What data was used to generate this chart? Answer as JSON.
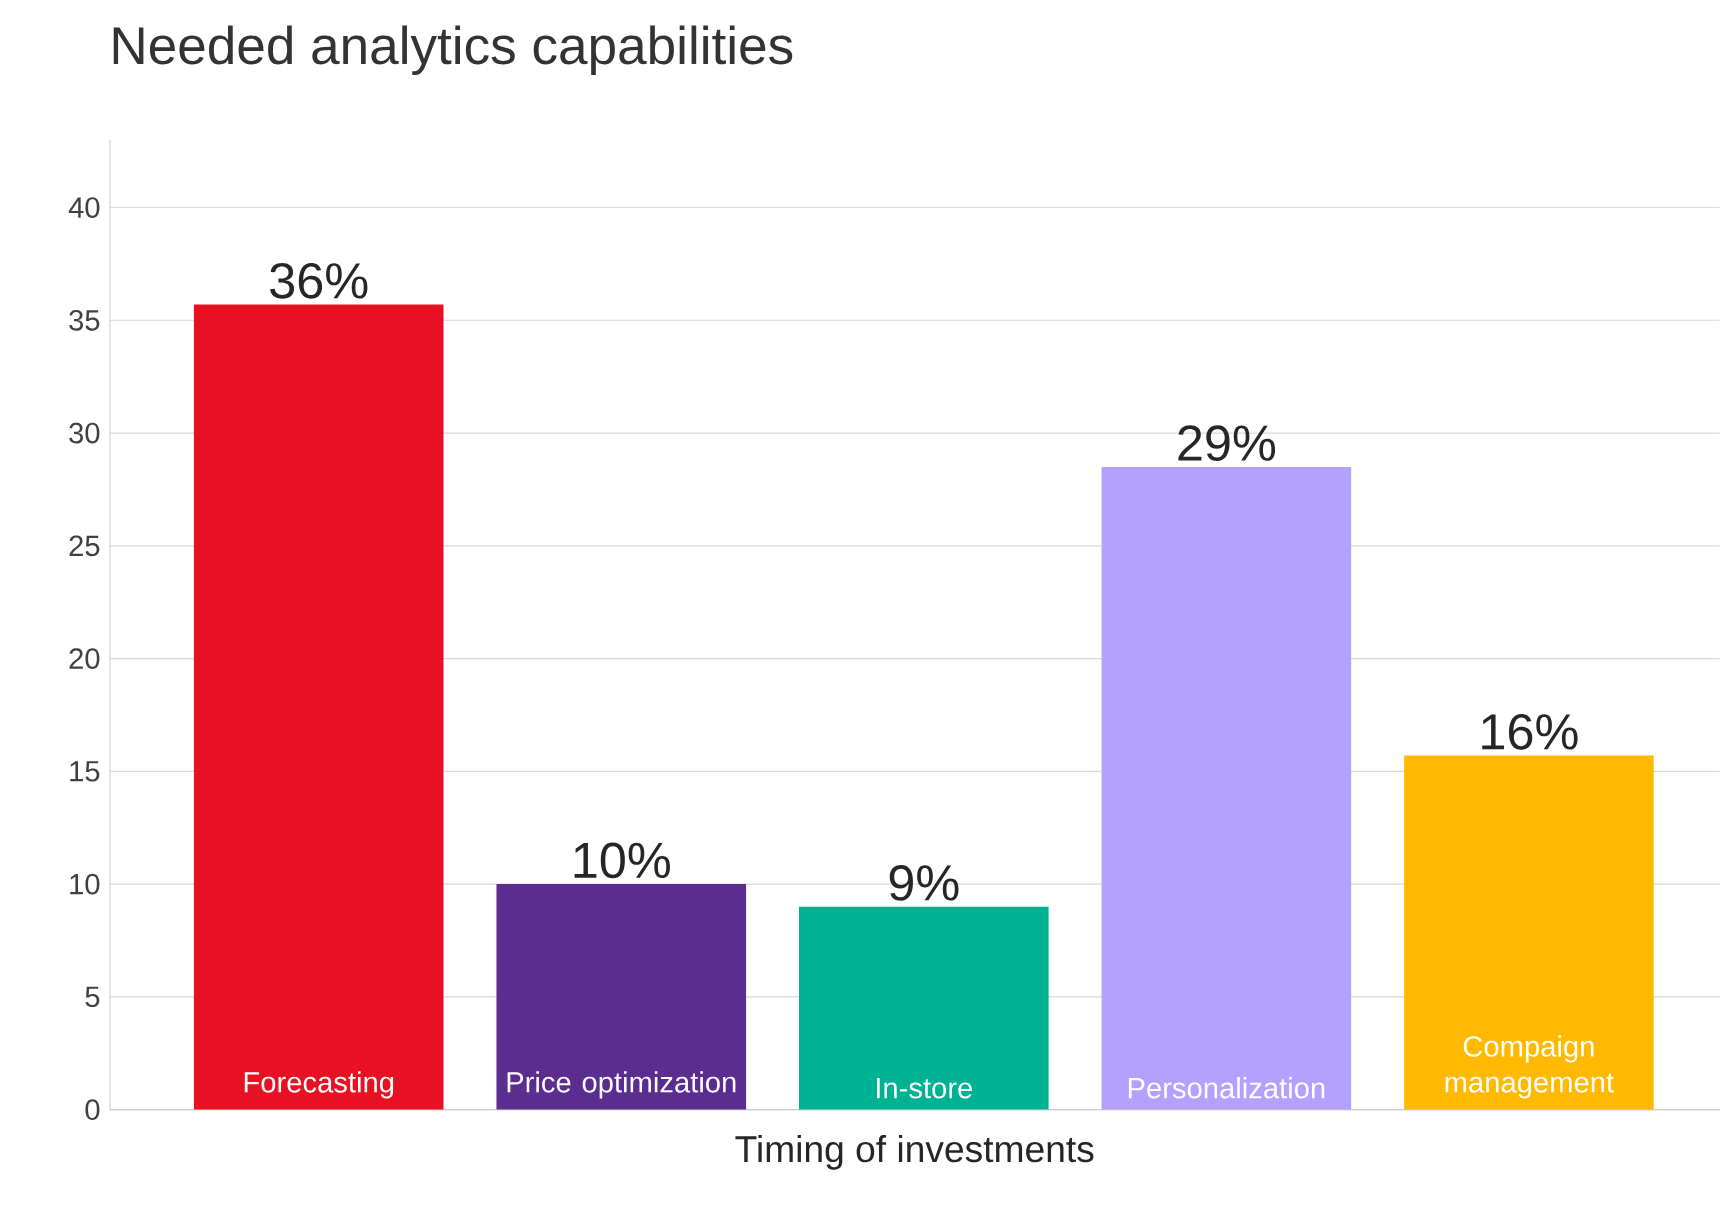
{
  "chart_data": {
    "type": "bar",
    "title": "Needed analytics capabilities",
    "xlabel": "Timing of investments",
    "categories": [
      "Forecasting",
      "Price optimization",
      "In-store",
      "Personalization",
      "Compaign management"
    ],
    "values": [
      35.7,
      10.0,
      9.0,
      28.5,
      15.7
    ],
    "value_labels": [
      "36%",
      "10%",
      "9%",
      "29%",
      "16%"
    ],
    "colors": [
      "#e81123",
      "#5c2d91",
      "#00b294",
      "#b4a0ff",
      "#ffb900"
    ],
    "ylim": [
      0,
      43
    ],
    "yticks": [
      0,
      5,
      10,
      15,
      20,
      25,
      30,
      35,
      40
    ],
    "grid": "y"
  }
}
